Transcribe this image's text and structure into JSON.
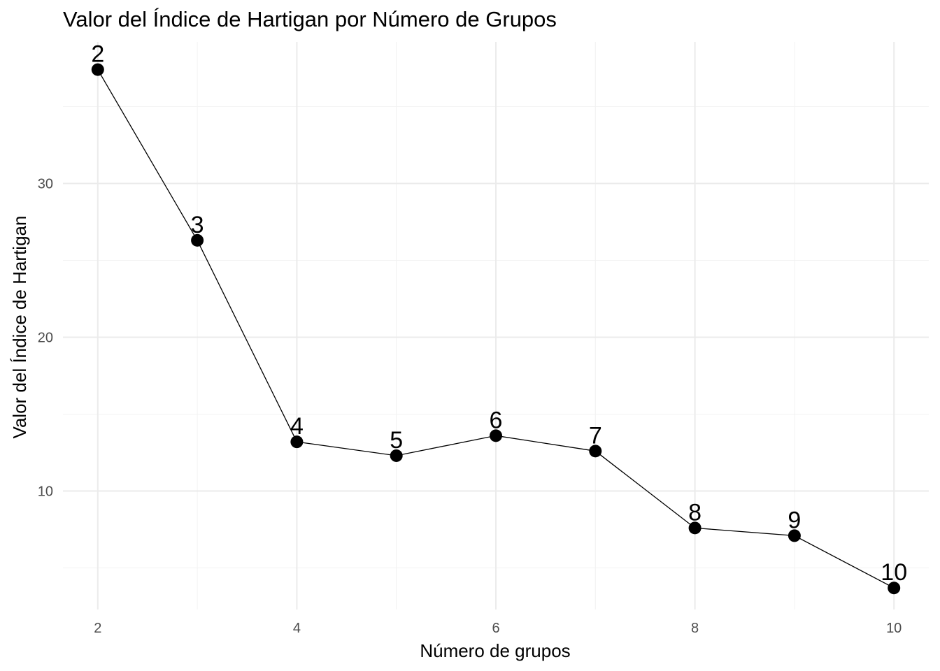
{
  "chart_data": {
    "type": "line",
    "title": "Valor del Índice de Hartigan por Número de Grupos",
    "xlabel": "Número de grupos",
    "ylabel": "Valor del Índice de Hartigan",
    "x": [
      2,
      3,
      4,
      5,
      6,
      7,
      8,
      9,
      10
    ],
    "y": [
      37.4,
      26.3,
      13.2,
      12.3,
      13.6,
      12.6,
      7.6,
      7.1,
      3.7
    ],
    "point_labels": [
      "2",
      "3",
      "4",
      "5",
      "6",
      "7",
      "8",
      "9",
      "10"
    ],
    "xlim": [
      1.65,
      10.35
    ],
    "ylim": [
      2.3,
      39.2
    ],
    "xticks": [
      2,
      4,
      6,
      8,
      10
    ],
    "yticks": [
      10,
      20,
      30
    ],
    "grid": true,
    "legend": "none",
    "colors": {
      "line": "#000000",
      "points": "#000000",
      "grid": "#ebebeb"
    }
  }
}
